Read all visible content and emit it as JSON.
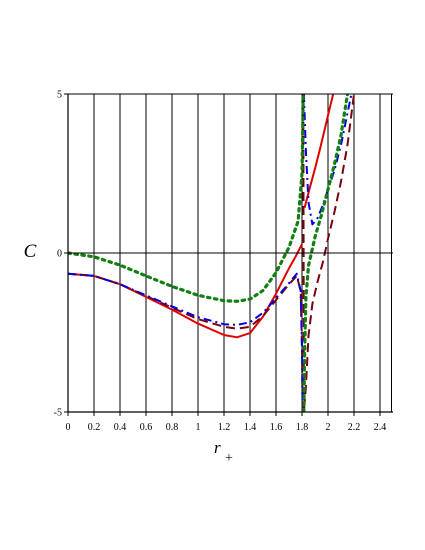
{
  "chart_data": {
    "type": "line",
    "xlabel": "r",
    "xlabel_sub": "+",
    "ylabel": "C",
    "xlim": [
      0,
      2.5
    ],
    "ylim": [
      -5,
      5
    ],
    "grid": "vertical lines at x ticks",
    "x_ticks": [
      0,
      0.2,
      0.4,
      0.6,
      0.8,
      1,
      1.2,
      1.4,
      1.6,
      1.8,
      2,
      2.2,
      2.4
    ],
    "x_tick_labels": [
      "0",
      "0.2",
      "0.4",
      "0.6",
      "0.8",
      "1",
      "1.2",
      "1.4",
      "1.6",
      "1.8",
      "2",
      "2.2",
      "2.4"
    ],
    "y_ticks": [
      -5,
      0,
      5
    ],
    "y_tick_labels": [
      "-5",
      "0",
      "5"
    ],
    "divergence_x": 1.81,
    "series": [
      {
        "color": "#e00000",
        "dash": "solid",
        "left_branch": [
          [
            0,
            -0.65
          ],
          [
            0.2,
            -0.72
          ],
          [
            0.4,
            -0.98
          ],
          [
            0.6,
            -1.38
          ],
          [
            0.8,
            -1.78
          ],
          [
            1.0,
            -2.22
          ],
          [
            1.2,
            -2.58
          ],
          [
            1.3,
            -2.65
          ],
          [
            1.4,
            -2.52
          ],
          [
            1.5,
            -2.0
          ],
          [
            1.6,
            -1.28
          ],
          [
            1.7,
            -0.48
          ],
          [
            1.75,
            -0.12
          ],
          [
            1.8,
            0.28
          ]
        ],
        "right_branch": [
          [
            1.82,
            1.42
          ],
          [
            1.86,
            2.05
          ],
          [
            1.9,
            2.65
          ],
          [
            1.94,
            3.3
          ],
          [
            1.98,
            3.98
          ],
          [
            2.01,
            4.5
          ],
          [
            2.04,
            5.0
          ]
        ]
      },
      {
        "color": "#7a0010",
        "dash": "long-dash",
        "left_branch": [
          [
            0,
            -0.65
          ],
          [
            0.2,
            -0.72
          ],
          [
            0.4,
            -0.98
          ],
          [
            0.6,
            -1.35
          ],
          [
            0.8,
            -1.72
          ],
          [
            1.0,
            -2.08
          ],
          [
            1.2,
            -2.32
          ],
          [
            1.3,
            -2.38
          ],
          [
            1.4,
            -2.32
          ],
          [
            1.5,
            -1.98
          ],
          [
            1.6,
            -1.48
          ],
          [
            1.7,
            -0.98
          ],
          [
            1.76,
            -0.72
          ],
          [
            1.79,
            -1.2
          ],
          [
            1.8,
            -3.0
          ],
          [
            1.805,
            -5.0
          ]
        ],
        "right_branch": [
          [
            1.81,
            5.0
          ],
          [
            1.815,
            -5.0
          ],
          [
            1.83,
            -4.2
          ],
          [
            1.85,
            -2.6
          ],
          [
            1.88,
            -1.6
          ],
          [
            1.92,
            -0.9
          ],
          [
            1.96,
            -0.3
          ],
          [
            2.0,
            0.45
          ],
          [
            2.05,
            1.3
          ],
          [
            2.1,
            2.25
          ],
          [
            2.15,
            3.4
          ],
          [
            2.2,
            5.0
          ]
        ]
      },
      {
        "color": "#0000e0",
        "dash": "dash-dot",
        "left_branch": [
          [
            0,
            -0.65
          ],
          [
            0.2,
            -0.72
          ],
          [
            0.4,
            -0.98
          ],
          [
            0.6,
            -1.33
          ],
          [
            0.8,
            -1.68
          ],
          [
            1.0,
            -2.02
          ],
          [
            1.2,
            -2.24
          ],
          [
            1.3,
            -2.26
          ],
          [
            1.4,
            -2.18
          ],
          [
            1.5,
            -1.88
          ],
          [
            1.6,
            -1.42
          ],
          [
            1.7,
            -0.95
          ],
          [
            1.76,
            -0.65
          ],
          [
            1.79,
            -1.2
          ],
          [
            1.8,
            -3.0
          ],
          [
            1.805,
            -5.0
          ]
        ],
        "right_branch": [
          [
            1.815,
            5.0
          ],
          [
            1.83,
            3.2
          ],
          [
            1.85,
            1.6
          ],
          [
            1.88,
            0.9
          ],
          [
            1.92,
            1.1
          ],
          [
            1.96,
            1.5
          ],
          [
            2.0,
            2.0
          ],
          [
            2.05,
            2.6
          ],
          [
            2.1,
            3.4
          ],
          [
            2.15,
            4.4
          ],
          [
            2.18,
            5.0
          ]
        ]
      },
      {
        "color": "#108010",
        "dash": "dotted",
        "left_branch": [
          [
            0,
            0.0
          ],
          [
            0.2,
            -0.12
          ],
          [
            0.4,
            -0.38
          ],
          [
            0.6,
            -0.72
          ],
          [
            0.8,
            -1.05
          ],
          [
            1.0,
            -1.33
          ],
          [
            1.2,
            -1.5
          ],
          [
            1.3,
            -1.52
          ],
          [
            1.4,
            -1.45
          ],
          [
            1.5,
            -1.18
          ],
          [
            1.6,
            -0.62
          ],
          [
            1.7,
            0.18
          ],
          [
            1.77,
            1.0
          ],
          [
            1.8,
            2.5
          ],
          [
            1.81,
            5.0
          ]
        ],
        "right_branch": [
          [
            1.815,
            -5.0
          ],
          [
            1.82,
            -3.2
          ],
          [
            1.83,
            -1.4
          ],
          [
            1.85,
            -0.4
          ],
          [
            1.9,
            0.5
          ],
          [
            1.95,
            1.2
          ],
          [
            2.0,
            2.0
          ],
          [
            2.05,
            2.8
          ],
          [
            2.1,
            3.7
          ],
          [
            2.15,
            5.0
          ]
        ]
      }
    ]
  }
}
